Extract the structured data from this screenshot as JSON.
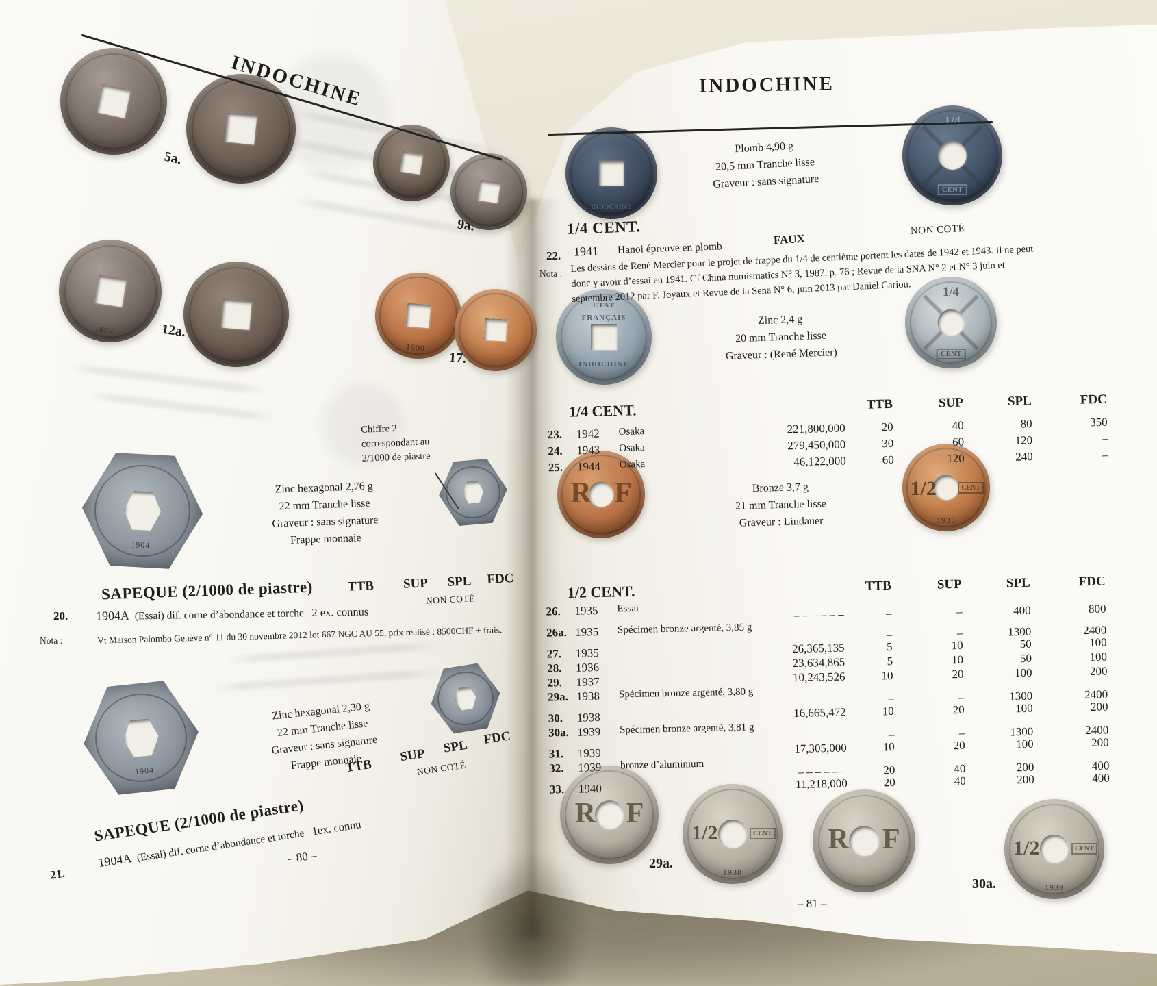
{
  "left_page": {
    "header": "INDOCHINE",
    "page_number": "– 80 –",
    "coin_labels": {
      "l5a": "5a.",
      "l9a": "9a.",
      "l12a": "12a.",
      "l17": "17."
    },
    "annotation": {
      "line1": "Chiffre 2",
      "line2": "correspondant au",
      "line3": "2/1000 de piastre"
    },
    "spec1": [
      "Zinc hexagonal 2,76 g",
      "22 mm Tranche lisse",
      "Graveur : sans signature",
      "Frappe monnaie"
    ],
    "spec2": [
      "Zinc hexagonal 2,30 g",
      "22 mm Tranche lisse",
      "Graveur : sans signature",
      "Frappe monnaie"
    ],
    "section20": {
      "title": "SAPEQUE (2/1000 de piastre)",
      "cols": [
        "TTB",
        "SUP",
        "SPL",
        "FDC"
      ],
      "non_cote": "NON COTÉ",
      "num": "20.",
      "year": "1904A",
      "desc": "(Essai) dif. corne d’abondance et torche",
      "known": "2 ex. connus",
      "nota_label": "Nota :",
      "nota": "Vt Maison Palombo Genève n° 11 du 30 novembre 2012 lot 667 NGC AU 55, prix réalisé : 8500CHF + frais."
    },
    "section21": {
      "title": "SAPEQUE (2/1000 de piastre)",
      "cols": [
        "TTB",
        "SUP",
        "SPL",
        "FDC"
      ],
      "non_cote": "NON COTÉ",
      "num": "21.",
      "year": "1904A",
      "desc": "(Essai) dif. corne d’abondance et torche",
      "known": "1ex. connu"
    }
  },
  "right_page": {
    "header": "INDOCHINE",
    "page_number": "– 81 –",
    "spec_top": [
      "Plomb 4,90 g",
      "20,5 mm Tranche lisse",
      "Graveur : sans signature"
    ],
    "section22": {
      "title": "1/4 CENT.",
      "faux": "FAUX",
      "non_cote": "NON COTÉ",
      "num": "22.",
      "year": "1941",
      "desc": "Hanoi épreuve en plomb",
      "nota_label": "Nota :",
      "nota": "Les dessins de René Mercier pour le projet de frappe du 1/4 de centième portent les dates de 1942 et 1943. Il ne peut donc y avoir d’essai en 1941. Cf China numismatics N° 3, 1987, p. 76 ; Revue de la SNA N° 2 et N° 3 juin et septembre 2012 par F. Joyaux et Revue de la Sena N° 6, juin 2013 par Daniel Cariou."
    },
    "spec_quarter": [
      "Zinc 2,4 g",
      "20 mm Tranche lisse",
      "Graveur : (René Mercier)"
    ],
    "table_quarter": {
      "title": "1/4 CENT.",
      "cols": [
        "TTB",
        "SUP",
        "SPL",
        "FDC"
      ],
      "rows": [
        {
          "num": "23.",
          "year": "1942",
          "desc": "Osaka",
          "mint": "221,800,000",
          "ttb": "20",
          "sup": "40",
          "spl": "80",
          "fdc": "350"
        },
        {
          "num": "24.",
          "year": "1943",
          "desc": "Osaka",
          "mint": "279,450,000",
          "ttb": "30",
          "sup": "60",
          "spl": "120",
          "fdc": "–"
        },
        {
          "num": "25.",
          "year": "1944",
          "desc": "Osaka",
          "mint": "46,122,000",
          "ttb": "60",
          "sup": "120",
          "spl": "240",
          "fdc": "–"
        }
      ]
    },
    "spec_half": [
      "Bronze 3,7 g",
      "21 mm Tranche lisse",
      "Graveur : Lindauer"
    ],
    "table_half": {
      "title": "1/2 CENT.",
      "cols": [
        "TTB",
        "SUP",
        "SPL",
        "FDC"
      ],
      "rows": [
        {
          "num": "26.",
          "year": "1935",
          "desc": "Essai",
          "mint": "– – – – – –",
          "ttb": "–",
          "sup": "–",
          "spl": "400",
          "fdc": "800",
          "split": true
        },
        {
          "num": "26a.",
          "year": "1935",
          "desc": "Spécimen bronze argenté, 3,85 g",
          "mint": "",
          "ttb": "–",
          "sup": "–",
          "spl": "1300",
          "fdc": "2400",
          "split": true
        },
        {
          "num": "27.",
          "year": "1935",
          "desc": "",
          "mint": "26,365,135",
          "ttb": "5",
          "sup": "10",
          "spl": "50",
          "fdc": "100"
        },
        {
          "num": "28.",
          "year": "1936",
          "desc": "",
          "mint": "23,634,865",
          "ttb": "5",
          "sup": "10",
          "spl": "50",
          "fdc": "100"
        },
        {
          "num": "29.",
          "year": "1937",
          "desc": "",
          "mint": "10,243,526",
          "ttb": "10",
          "sup": "20",
          "spl": "100",
          "fdc": "200"
        },
        {
          "num": "29a.",
          "year": "1938",
          "desc": "Spécimen bronze argenté, 3,80 g",
          "mint": "",
          "ttb": "–",
          "sup": "–",
          "spl": "1300",
          "fdc": "2400",
          "split": true
        },
        {
          "num": "30.",
          "year": "1938",
          "desc": "",
          "mint": "16,665,472",
          "ttb": "10",
          "sup": "20",
          "spl": "100",
          "fdc": "200"
        },
        {
          "num": "30a.",
          "year": "1939",
          "desc": "Spécimen bronze argenté, 3,81 g",
          "mint": "",
          "ttb": "–",
          "sup": "–",
          "spl": "1300",
          "fdc": "2400",
          "split": true
        },
        {
          "num": "31.",
          "year": "1939",
          "desc": "",
          "mint": "17,305,000",
          "ttb": "10",
          "sup": "20",
          "spl": "100",
          "fdc": "200"
        },
        {
          "num": "32.",
          "year": "1939",
          "desc": "bronze d’aluminium",
          "mint": "– – – – – –",
          "ttb": "20",
          "sup": "40",
          "spl": "200",
          "fdc": "400",
          "split": true
        },
        {
          "num": "33.",
          "year": "1940",
          "desc": "",
          "mint": "11,218,000",
          "ttb": "20",
          "sup": "40",
          "spl": "200",
          "fdc": "400"
        }
      ]
    },
    "coin_labels": {
      "l29a": "29a.",
      "l30a": "30a."
    }
  },
  "coin_faces": {
    "rf_r": "R",
    "rf_f": "F",
    "half": "1/2",
    "quarter": "1/4",
    "cent": "CENT",
    "etat1": "ETAT",
    "etat2": "FRANÇAIS",
    "indochine": "INDOCHINE",
    "d1897": "1897",
    "d1900": "1900",
    "d1904": "1904",
    "d1935": "1935",
    "d1938": "1938",
    "d1939": "1939"
  }
}
